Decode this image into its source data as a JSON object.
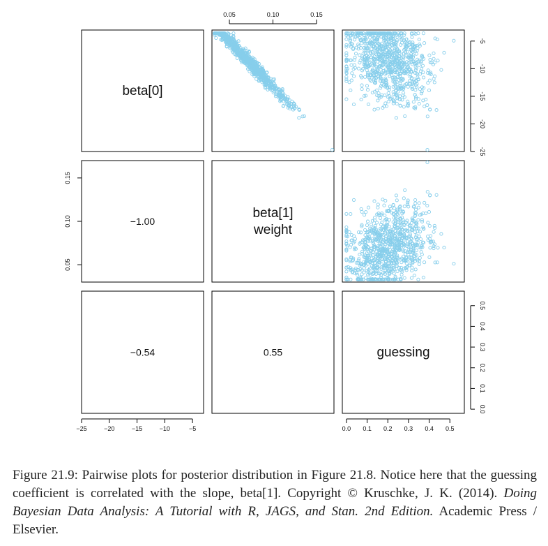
{
  "chart_data": {
    "type": "scatter",
    "variables": [
      {
        "label_lines": [
          "beta[0]"
        ],
        "range": [
          -25,
          -3
        ]
      },
      {
        "label_lines": [
          "beta[1]",
          "weight"
        ],
        "range": [
          0.03,
          0.17
        ]
      },
      {
        "label_lines": [
          "guessing"
        ],
        "range": [
          -0.02,
          0.57
        ]
      }
    ],
    "correlations": {
      "r_1_0": "−1.00",
      "r_2_0": "−0.54",
      "r_2_1": "0.55"
    },
    "axes": {
      "top_ticks": [
        "0.05",
        "0.10",
        "0.15"
      ],
      "right_upper_ticks": [
        "-5",
        "-10",
        "-15",
        "-20",
        "-25"
      ],
      "left_middle_ticks": [
        "0.05",
        "0.10",
        "0.15"
      ],
      "right_lower_ticks": [
        "0.0",
        "0.1",
        "0.2",
        "0.3",
        "0.4",
        "0.5"
      ],
      "bottom_left_ticks": [
        "−25",
        "−20",
        "−15",
        "−10",
        "−5"
      ],
      "bottom_right_ticks": [
        "0.0",
        "0.1",
        "0.2",
        "0.3",
        "0.4",
        "0.5"
      ]
    },
    "point_color": "#87CEEB",
    "n_points_approx": 900
  },
  "caption": {
    "text": "Figure 21.9: Pairwise plots for posterior distribution in Figure 21.8. Notice here that the guessing coefficient is correlated with the slope, beta[1]. Copyright © Kruschke, J. K. (2014). ",
    "book_title": "Doing Bayesian Data Analysis: A Tutorial with R, JAGS, and Stan. 2nd Edition.",
    "publisher": " Academic Press / Elsevier."
  }
}
